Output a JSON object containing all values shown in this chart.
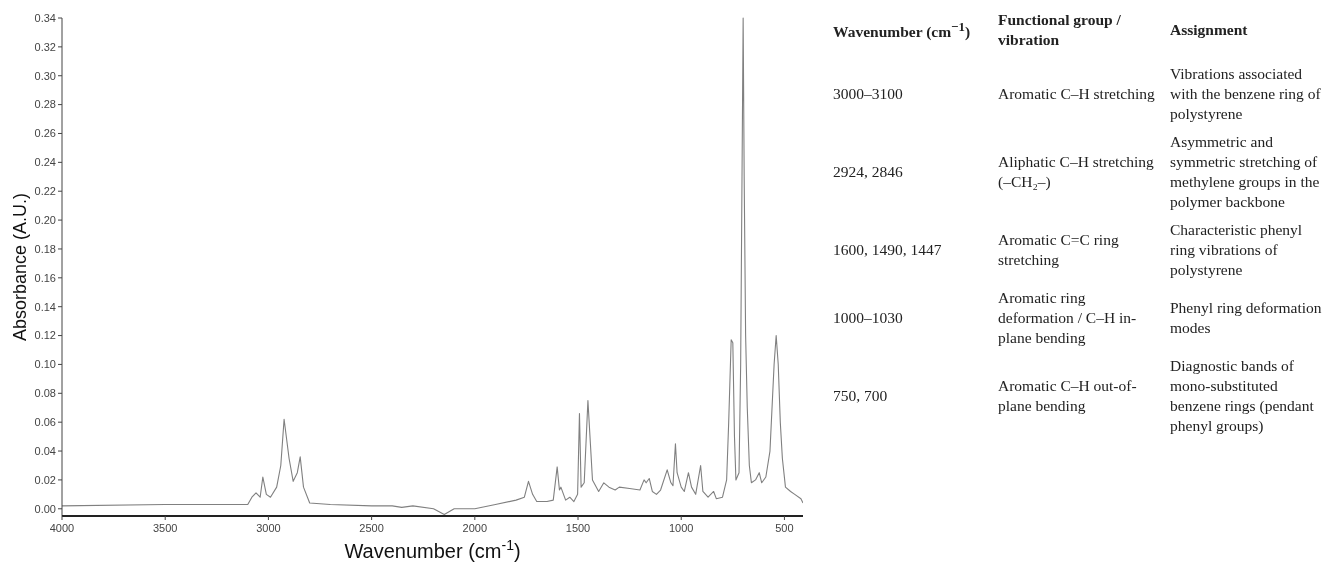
{
  "chart_data": [
    {
      "type": "line",
      "xlabel": "Wavenumber (cm$^{-1}$)",
      "ylabel": "Absorbance (A.U.)",
      "xlim": [
        4000,
        410
      ],
      "ylim": [
        -0.005,
        0.34
      ],
      "xticks": [
        4000,
        3500,
        3000,
        2500,
        2000,
        1500,
        1000,
        500
      ],
      "yticks": [
        {
          "value": 0,
          "label": "0.00"
        },
        {
          "value": 0.02,
          "label": "0.02"
        },
        {
          "value": 0.04,
          "label": "0.04"
        },
        {
          "value": 0.06,
          "label": "0.06"
        },
        {
          "value": 0.08,
          "label": "0.08"
        },
        {
          "value": 0.1,
          "label": "0.10"
        },
        {
          "value": 0.12,
          "label": "0.12"
        },
        {
          "value": 0.14,
          "label": "0.14"
        },
        {
          "value": 0.16,
          "label": "0.16"
        },
        {
          "value": 0.18,
          "label": "0.18"
        },
        {
          "value": 0.2,
          "label": "0.20"
        },
        {
          "value": 0.22,
          "label": "0.22"
        },
        {
          "value": 0.24,
          "label": "0.24"
        },
        {
          "value": 0.26,
          "label": "0.26"
        },
        {
          "value": 0.28,
          "label": "0.28"
        },
        {
          "value": 0.3,
          "label": "0.30"
        },
        {
          "value": 0.32,
          "label": "0.32"
        },
        {
          "value": 0.34,
          "label": "0.34"
        }
      ],
      "grid": false,
      "marker": "none",
      "line_style": "solid",
      "series": [
        {
          "color": "#808080",
          "x": [
            4000,
            3500,
            3200,
            3100,
            3080,
            3060,
            3040,
            3027,
            3010,
            2990,
            2960,
            2940,
            2924,
            2900,
            2880,
            2860,
            2846,
            2830,
            2800,
            2700,
            2500,
            2400,
            2354,
            2300,
            2200,
            2148,
            2100,
            2000,
            1900,
            1800,
            1760,
            1740,
            1720,
            1700,
            1650,
            1620,
            1601,
            1590,
            1583,
            1560,
            1540,
            1520,
            1502,
            1493,
            1485,
            1470,
            1452,
            1440,
            1430,
            1400,
            1375,
            1350,
            1320,
            1300,
            1250,
            1200,
            1180,
            1170,
            1155,
            1140,
            1120,
            1100,
            1068,
            1050,
            1040,
            1028,
            1020,
            1000,
            985,
            965,
            950,
            930,
            906,
            895,
            870,
            843,
            830,
            800,
            780,
            770,
            758,
            750,
            742,
            735,
            720,
            712,
            700,
            695,
            688,
            680,
            670,
            660,
            640,
            622,
            610,
            590,
            570,
            550,
            540,
            530,
            520,
            510,
            495,
            470,
            450,
            420,
            410
          ],
          "values": [
            0.002,
            0.003,
            0.003,
            0.003,
            0.008,
            0.011,
            0.008,
            0.022,
            0.01,
            0.008,
            0.015,
            0.03,
            0.062,
            0.035,
            0.019,
            0.025,
            0.036,
            0.015,
            0.004,
            0.003,
            0.002,
            0.002,
            0.001,
            0.002,
            0.0,
            -0.004,
            0.0,
            0.0,
            0.003,
            0.006,
            0.008,
            0.019,
            0.01,
            0.005,
            0.005,
            0.006,
            0.029,
            0.013,
            0.015,
            0.006,
            0.008,
            0.005,
            0.01,
            0.066,
            0.015,
            0.018,
            0.075,
            0.045,
            0.02,
            0.012,
            0.018,
            0.015,
            0.013,
            0.015,
            0.014,
            0.013,
            0.02,
            0.018,
            0.021,
            0.012,
            0.01,
            0.013,
            0.027,
            0.018,
            0.016,
            0.045,
            0.025,
            0.015,
            0.012,
            0.025,
            0.015,
            0.01,
            0.03,
            0.012,
            0.008,
            0.012,
            0.007,
            0.008,
            0.02,
            0.06,
            0.117,
            0.115,
            0.05,
            0.02,
            0.025,
            0.1,
            0.34,
            0.23,
            0.12,
            0.07,
            0.03,
            0.018,
            0.02,
            0.025,
            0.018,
            0.022,
            0.04,
            0.1,
            0.12,
            0.1,
            0.06,
            0.035,
            0.015,
            0.012,
            0.01,
            0.007,
            0.004
          ]
        }
      ]
    },
    {
      "type": "other",
      "annotations": [
        "Wavenumber (cm$^{−1}$)",
        "Functional group / vibration",
        "Assignment",
        "3000–3100",
        "Aromatic C–H stretching",
        "Vibrations associated with the benzene ring of polystyrene",
        "2924, 2846",
        "Aliphatic C–H stretching (–CH₂–)",
        "Asymmetric and symmetric stretching of methylene groups in the polymer backbone",
        "1600, 1490, 1447",
        "Aromatic C=C ring stretching",
        "Characteristic phenyl ring vibrations of polystyrene",
        "1000–1030",
        "Aromatic ring deformation / C–H in-plane bending",
        "Phenyl ring deformation modes",
        "750, 700",
        "Aromatic C–H out-of-plane bending",
        "Diagnostic bands of mono-substituted benzene rings (pendant phenyl groups)"
      ]
    }
  ]
}
